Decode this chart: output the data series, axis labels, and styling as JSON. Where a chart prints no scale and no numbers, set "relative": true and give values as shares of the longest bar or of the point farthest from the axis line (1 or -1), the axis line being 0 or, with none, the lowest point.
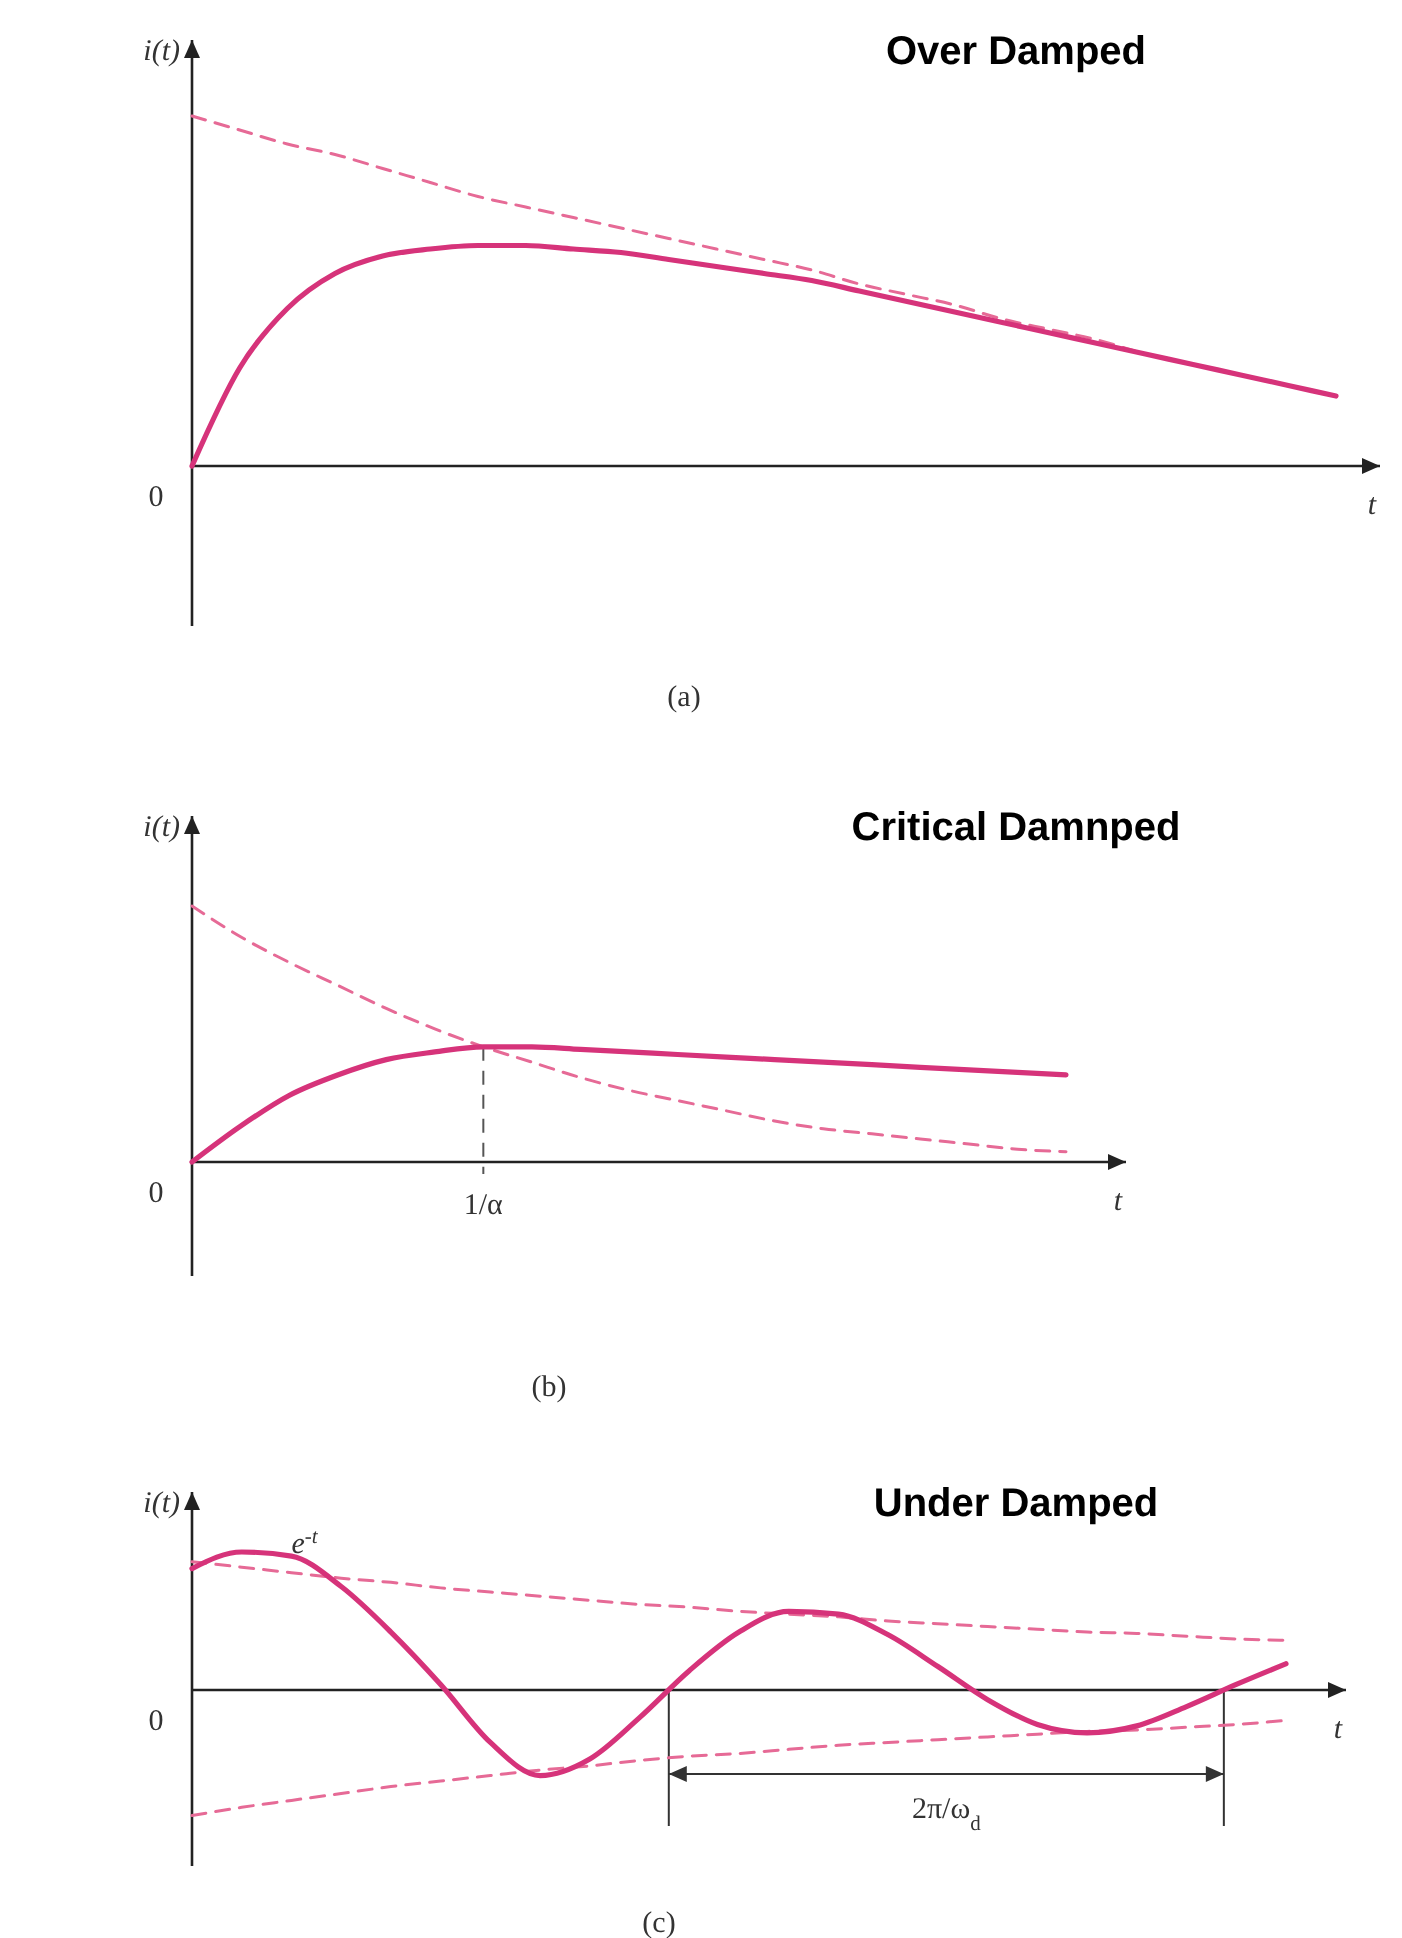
{
  "chart_data": [
    {
      "type": "line",
      "title": "Over Damped",
      "ylabel": "i(t)",
      "xlabel": "t",
      "relative": true,
      "marker": "none",
      "annotations": [
        "0",
        "(a)"
      ],
      "categories": [
        null,
        null,
        null,
        null,
        null,
        null,
        null,
        null,
        null,
        null,
        null,
        null,
        null,
        null,
        null,
        null,
        null,
        null,
        null,
        null,
        null,
        null,
        null,
        null,
        null
      ],
      "series": [
        {
          "color": "#e66a96",
          "line_style": "dashed",
          "values": [
            1.0,
            0.96,
            0.92,
            0.89,
            0.85,
            0.81,
            0.77,
            0.74,
            0.71,
            0.68,
            0.65,
            0.62,
            0.59,
            0.56,
            0.52,
            0.49,
            0.46,
            0.42,
            0.39,
            0.36,
            0.32,
            0.29,
            0.26,
            0.23,
            0.2
          ]
        },
        {
          "color": "#d6337a",
          "line_style": "solid",
          "values": [
            0,
            0.28,
            0.45,
            0.55,
            0.6,
            0.62,
            0.63,
            0.63,
            0.62,
            0.61,
            0.59,
            0.57,
            0.55,
            0.53,
            0.5,
            0.47,
            0.44,
            0.41,
            0.38,
            0.35,
            0.32,
            0.29,
            0.26,
            0.23,
            0.2
          ]
        }
      ]
    },
    {
      "type": "line",
      "title": "Critical Damnped",
      "ylabel": "i(t)",
      "xlabel": "t",
      "relative": true,
      "marker": "none",
      "annotations": [
        "0",
        "(b)",
        "1/α"
      ],
      "categories": [
        null,
        null,
        null,
        null,
        null,
        null,
        null,
        null,
        null,
        null,
        null,
        null,
        null,
        null,
        null,
        null,
        null,
        null,
        null
      ],
      "series": [
        {
          "color": "#e66a96",
          "line_style": "dashed",
          "values": [
            1.0,
            0.88,
            0.78,
            0.69,
            0.6,
            0.52,
            0.45,
            0.39,
            0.33,
            0.28,
            0.24,
            0.2,
            0.16,
            0.13,
            0.11,
            0.09,
            0.07,
            0.05,
            0.04
          ]
        },
        {
          "color": "#d6337a",
          "line_style": "solid",
          "values": [
            0,
            0.14,
            0.26,
            0.34,
            0.4,
            0.43,
            0.45,
            0.45,
            0.44,
            0.43,
            0.42,
            0.41,
            0.4,
            0.39,
            0.38,
            0.37,
            0.36,
            0.35,
            0.34
          ]
        }
      ]
    },
    {
      "type": "line",
      "title": "Under Damped",
      "ylabel": "i(t)",
      "xlabel": "t",
      "relative": true,
      "marker": "none",
      "annotations": [
        "0",
        "(c)",
        "2π/ω$_{d}$"
      ],
      "categories": [
        null,
        null,
        null,
        null,
        null,
        null,
        null,
        null,
        null,
        null,
        null,
        null,
        null,
        null,
        null,
        null,
        null,
        null,
        null,
        null,
        null,
        null,
        null
      ],
      "series": [
        {
          "name": "e$^{-t}$",
          "color": "#e66a96",
          "line_style": "dashed",
          "values": [
            0.93,
            0.89,
            0.85,
            0.81,
            0.78,
            0.74,
            0.71,
            0.68,
            0.65,
            0.62,
            0.6,
            0.57,
            0.55,
            0.53,
            0.5,
            0.48,
            0.46,
            0.44,
            0.42,
            0.41,
            0.39,
            0.37,
            0.36
          ]
        },
        {
          "color": "#e66a96",
          "line_style": "dashed",
          "values": [
            -0.91,
            -0.85,
            -0.8,
            -0.75,
            -0.7,
            -0.66,
            -0.62,
            -0.58,
            -0.55,
            -0.51,
            -0.48,
            -0.46,
            -0.43,
            -0.4,
            -0.38,
            -0.36,
            -0.34,
            -0.32,
            -0.3,
            -0.29,
            -0.27,
            -0.25,
            -0.22
          ]
        },
        {
          "color": "#d6337a",
          "line_style": "solid",
          "values": [
            0.88,
            1.0,
            0.97,
            0.75,
            0.42,
            0.04,
            -0.38,
            -0.62,
            -0.5,
            -0.2,
            0.14,
            0.42,
            0.57,
            0.55,
            0.4,
            0.17,
            -0.07,
            -0.25,
            -0.31,
            -0.26,
            -0.12,
            0.04,
            0.19
          ]
        }
      ]
    }
  ]
}
